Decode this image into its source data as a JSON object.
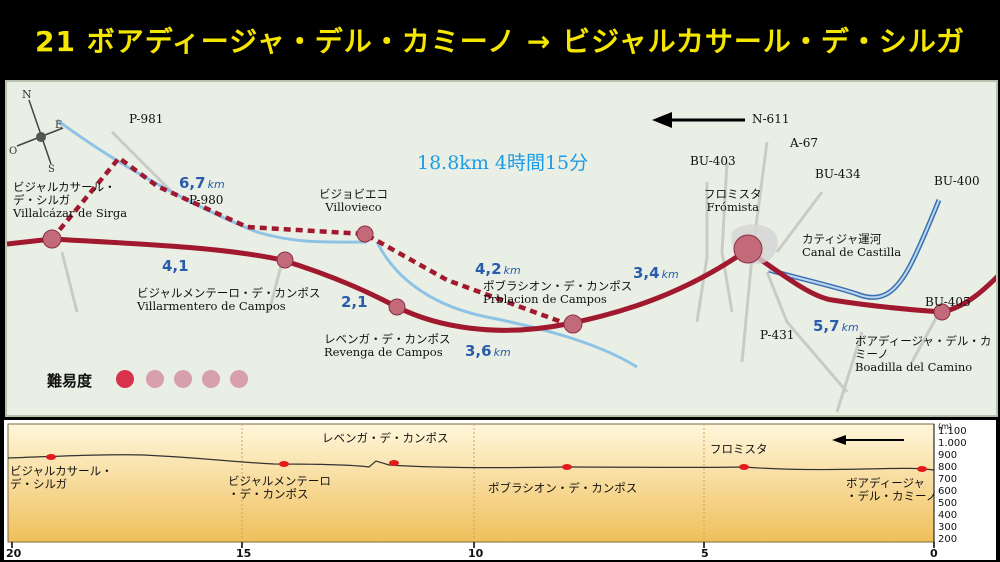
{
  "title": "21 ボアディージャ・デル・カミーノ → ビジャルカサール・デ・シルガ",
  "map": {
    "total": "18.8km 4時間15分",
    "compass": {
      "n": "N",
      "s": "S",
      "e": "E",
      "o": "O"
    },
    "roads": {
      "p981": "P-981",
      "p980": "P-980",
      "n611": "N-611",
      "a67": "A-67",
      "bu403": "BU-403",
      "bu434": "BU-434",
      "bu400": "BU-400",
      "bu405": "BU-405",
      "p431": "P-431"
    },
    "places": {
      "villalcazar": {
        "jp1": "ビジャルカサール・",
        "jp2": "デ・シルガ",
        "es": "Villalcázar de Sirga"
      },
      "villovieco": {
        "jp": "ビジョビエコ",
        "es": "Villovieco"
      },
      "villarmentero": {
        "jp": "ビジャルメンテーロ・デ・カンポス",
        "es": "Villarmentero de Campos"
      },
      "revenga": {
        "jp": "レベンガ・デ・カンポス",
        "es": "Revenga de Campos"
      },
      "poblacion": {
        "jp": "ポブラシオン・デ・カンポス",
        "es": "Prblacion de Campos"
      },
      "fromista": {
        "jp": "フロミスタ",
        "es": "Frómista"
      },
      "canal": {
        "jp": "カティジャ運河",
        "es": "Canal de Castilla"
      },
      "boadilla": {
        "jp1": "ボアディージャ・デル・カ",
        "jp2": "ミーノ",
        "es": "Boadilla del Camino"
      }
    },
    "distances": {
      "d67": "6,7",
      "d41": "4,1",
      "d21": "2,1",
      "d36": "3,6",
      "d42": "4,2",
      "d34": "3,4",
      "d57": "5,7",
      "unit": "km"
    },
    "difficulty": {
      "label": "難易度",
      "level": 1,
      "max": 5
    }
  },
  "profile": {
    "x_ticks": [
      "20",
      "15",
      "10",
      "5",
      "0"
    ],
    "y_unit": "(m)",
    "y_ticks": [
      "1.100",
      "1.000",
      "900",
      "800",
      "700",
      "600",
      "500",
      "400",
      "300",
      "200"
    ],
    "labels": {
      "villalcazar1": "ビジャルカサール・",
      "villalcazar2": "デ・シルガ",
      "villarmentero1": "ビジャルメンテーロ",
      "villarmentero2": "・デ・カンポス",
      "revenga": "レベンガ・デ・カンポス",
      "poblacion": "ポブラシオン・デ・カンポス",
      "fromista": "フロミスタ",
      "boadilla1": "ボアディージャ",
      "boadilla2": "・デル・カミーノ"
    }
  },
  "colors": {
    "route": "#a0192e",
    "river": "#8ec3e6",
    "title": "#f5e600",
    "total": "#1e9be6",
    "dist": "#2a5cae"
  }
}
